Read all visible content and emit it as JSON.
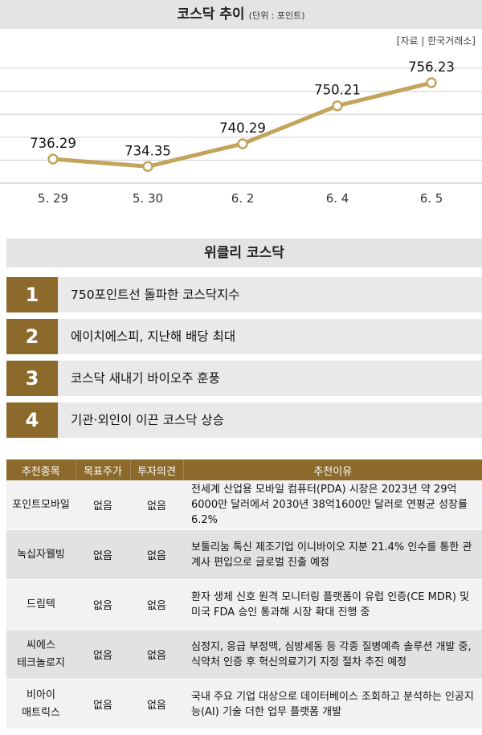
{
  "header": {
    "title": "코스닥 추이",
    "unit": "(단위 : 포인트)",
    "source": "[자료 | 한국거래소]"
  },
  "chart_data": {
    "type": "line",
    "title": "코스닥 추이",
    "unit": "(단위 : 포인트)",
    "categories": [
      "5. 29",
      "5. 30",
      "6. 2",
      "6. 4",
      "6. 5"
    ],
    "values": [
      736.29,
      734.35,
      740.29,
      750.21,
      756.23
    ],
    "labels": [
      "736.29",
      "734.35",
      "740.29",
      "750.21",
      "756.23"
    ],
    "ylim": [
      730,
      764
    ],
    "grid": true,
    "line_color": "#c4a45c",
    "marker_fill": "#ffffff"
  },
  "weekly": {
    "heading": "위클리 코스닥",
    "items": [
      {
        "rank": "1",
        "text": "750포인트선 돌파한 코스닥지수"
      },
      {
        "rank": "2",
        "text": "에이치에스피, 지난해 배당 최대"
      },
      {
        "rank": "3",
        "text": "코스닥 새내기 바이오주 훈풍"
      },
      {
        "rank": "4",
        "text": "기관·외인이 이끈 코스닥 상승"
      }
    ]
  },
  "table": {
    "headers": [
      "추천종목",
      "목표주가",
      "투자의견",
      "추천이유"
    ],
    "rows": [
      {
        "name": "포인트모바일",
        "target": "없음",
        "opinion": "없음",
        "reason": "전세계 산업용 모바일 컴퓨터(PDA) 시장은 2023년 약 29억6000만 달러에서 2030년 38억1600만 달러로 연평균 성장률 6.2%"
      },
      {
        "name": "녹십자웰빙",
        "target": "없음",
        "opinion": "없음",
        "reason": "보툴리눔 톡신 제조기업 이니바이오 지분 21.4% 인수를 통한 관계사 편입으로 글로벌 진출 예정"
      },
      {
        "name": "드림텍",
        "target": "없음",
        "opinion": "없음",
        "reason": "환자 생체 신호 원격 모니터링 플랫폼이 유럽 인증(CE MDR) 및 미국 FDA 승인 통과해 시장 확대 진행 중"
      },
      {
        "name": "씨에스\n테크놀로지",
        "target": "없음",
        "opinion": "없음",
        "reason": "심정지, 응급 부정맥, 심방세동 등 각종 질병예측 솔루션 개발 중, 식약처 인증 후 혁신의료기기 지정 절차 추진 예정"
      },
      {
        "name": "비아이\n매트릭스",
        "target": "없음",
        "opinion": "없음",
        "reason": "국내 주요 기업 대상으로 데이터베이스 조회하고 분석하는 인공지능(AI) 기술 더한 업무 플랫폼 개발"
      }
    ]
  },
  "colors": {
    "accent": "#8c6a2c",
    "header_gray": "#e4e4e4",
    "line": "#c4a45c"
  }
}
